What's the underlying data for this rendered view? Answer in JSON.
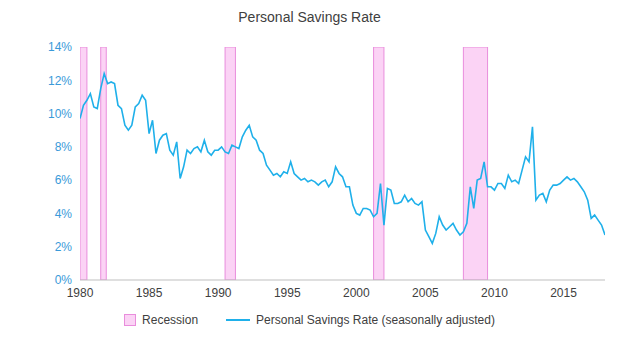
{
  "chart_data": {
    "type": "line",
    "title": "Personal Savings Rate",
    "x": [
      1980,
      1980.25,
      1980.5,
      1980.75,
      1981,
      1981.25,
      1981.5,
      1981.75,
      1982,
      1982.25,
      1982.5,
      1982.75,
      1983,
      1983.25,
      1983.5,
      1983.75,
      1984,
      1984.25,
      1984.5,
      1984.75,
      1985,
      1985.25,
      1985.5,
      1985.75,
      1986,
      1986.25,
      1986.5,
      1986.75,
      1987,
      1987.25,
      1987.5,
      1987.75,
      1988,
      1988.25,
      1988.5,
      1988.75,
      1989,
      1989.25,
      1989.5,
      1989.75,
      1990,
      1990.25,
      1990.5,
      1990.75,
      1991,
      1991.25,
      1991.5,
      1991.75,
      1992,
      1992.25,
      1992.5,
      1992.75,
      1993,
      1993.25,
      1993.5,
      1993.75,
      1994,
      1994.25,
      1994.5,
      1994.75,
      1995,
      1995.25,
      1995.5,
      1995.75,
      1996,
      1996.25,
      1996.5,
      1996.75,
      1997,
      1997.25,
      1997.5,
      1997.75,
      1998,
      1998.25,
      1998.5,
      1998.75,
      1999,
      1999.25,
      1999.5,
      1999.75,
      2000,
      2000.25,
      2000.5,
      2000.75,
      2001,
      2001.25,
      2001.5,
      2001.75,
      2002,
      2002.25,
      2002.5,
      2002.75,
      2003,
      2003.25,
      2003.5,
      2003.75,
      2004,
      2004.25,
      2004.5,
      2004.75,
      2005,
      2005.25,
      2005.5,
      2005.75,
      2006,
      2006.25,
      2006.5,
      2006.75,
      2007,
      2007.25,
      2007.5,
      2007.75,
      2008,
      2008.25,
      2008.5,
      2008.75,
      2009,
      2009.25,
      2009.5,
      2009.75,
      2010,
      2010.25,
      2010.5,
      2010.75,
      2011,
      2011.25,
      2011.5,
      2011.75,
      2012,
      2012.25,
      2012.5,
      2012.75,
      2013,
      2013.25,
      2013.5,
      2013.75,
      2014,
      2014.25,
      2014.5,
      2014.75,
      2015,
      2015.25,
      2015.5,
      2015.75,
      2016,
      2016.25,
      2016.5,
      2016.75,
      2017,
      2017.25,
      2017.5,
      2017.75,
      2018
    ],
    "series": [
      {
        "name": "Personal Savings Rate (seasonally adjusted)",
        "color": "#1fb0ea",
        "values": [
          9.7,
          10.5,
          10.8,
          11.2,
          10.4,
          10.3,
          11.5,
          12.4,
          11.8,
          11.9,
          11.8,
          10.5,
          10.3,
          9.3,
          9.0,
          9.3,
          10.4,
          10.6,
          11.1,
          10.8,
          8.8,
          9.6,
          7.6,
          8.4,
          8.7,
          8.8,
          7.8,
          7.5,
          8.3,
          6.1,
          6.8,
          7.8,
          7.6,
          7.9,
          8.0,
          7.7,
          8.4,
          7.7,
          7.5,
          7.8,
          7.8,
          8.0,
          7.7,
          7.6,
          8.1,
          8.0,
          7.9,
          8.6,
          9.0,
          9.3,
          8.6,
          8.4,
          7.8,
          7.6,
          6.9,
          6.6,
          6.3,
          6.4,
          6.2,
          6.5,
          6.4,
          7.1,
          6.4,
          6.2,
          6.0,
          6.1,
          5.9,
          6.0,
          5.9,
          5.7,
          5.9,
          6.0,
          5.6,
          5.9,
          6.8,
          6.4,
          6.2,
          5.6,
          5.6,
          4.5,
          4.0,
          3.9,
          4.3,
          4.3,
          4.2,
          3.8,
          4.0,
          5.8,
          3.3,
          5.5,
          5.4,
          4.6,
          4.6,
          4.7,
          5.1,
          4.7,
          4.9,
          4.6,
          4.5,
          4.7,
          3.0,
          2.6,
          2.2,
          2.8,
          3.8,
          3.3,
          3.0,
          3.2,
          3.4,
          3.0,
          2.7,
          2.9,
          3.4,
          5.6,
          4.3,
          6.0,
          6.1,
          7.1,
          5.6,
          5.6,
          5.4,
          5.8,
          5.8,
          5.5,
          6.3,
          5.9,
          6.0,
          5.8,
          6.6,
          7.4,
          7.1,
          9.2,
          4.8,
          5.1,
          5.2,
          4.7,
          5.4,
          5.7,
          5.7,
          5.8,
          6.0,
          6.2,
          6.0,
          6.1,
          5.9,
          5.6,
          5.3,
          4.8,
          3.7,
          3.9,
          3.6,
          3.3,
          2.7
        ]
      }
    ],
    "recessions": {
      "name": "Recession",
      "color": "#fbd3f5",
      "periods": [
        [
          1980,
          1980.5
        ],
        [
          1981.5,
          1981.9
        ],
        [
          1990.5,
          1991.25
        ],
        [
          2001.25,
          2002
        ],
        [
          2007.75,
          2009.5
        ]
      ]
    },
    "xlim": [
      1980,
      2018
    ],
    "xticks": [
      1980,
      1985,
      1990,
      1995,
      2000,
      2005,
      2010,
      2015
    ],
    "ylim": [
      0,
      14
    ],
    "yticks": [
      {
        "value": 0,
        "label": "0%"
      },
      {
        "value": 2,
        "label": "2%"
      },
      {
        "value": 4,
        "label": "4%"
      },
      {
        "value": 6,
        "label": "6%"
      },
      {
        "value": 8,
        "label": "8%"
      },
      {
        "value": 10,
        "label": "10%"
      },
      {
        "value": 12,
        "label": "12%"
      },
      {
        "value": 14,
        "label": "14%"
      }
    ],
    "grid": false,
    "legend": "bottom"
  }
}
